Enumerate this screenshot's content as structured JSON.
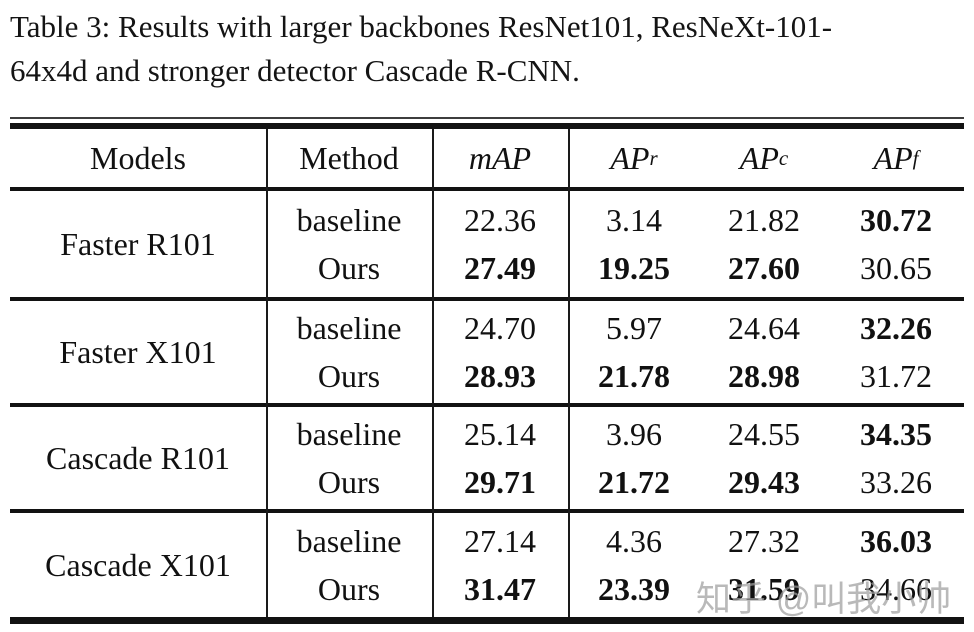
{
  "caption": {
    "line1": "Table 3: Results with larger backbones ResNet101, ResNeXt-101-",
    "line2": "64x4d and stronger detector Cascade R-CNN."
  },
  "table": {
    "headers": {
      "models": "Models",
      "method": "Method",
      "map": "mAP",
      "ap": "AP",
      "sub_r": "r",
      "sub_c": "c",
      "sub_f": "f"
    },
    "method_labels": {
      "baseline": "baseline",
      "ours": "Ours"
    },
    "rows": [
      {
        "model": "Faster R101",
        "baseline": {
          "map": "22.36",
          "apr": "3.14",
          "apc": "21.82",
          "apf": "30.72"
        },
        "ours": {
          "map": "27.49",
          "apr": "19.25",
          "apc": "27.60",
          "apf": "30.65"
        }
      },
      {
        "model": "Faster X101",
        "baseline": {
          "map": "24.70",
          "apr": "5.97",
          "apc": "24.64",
          "apf": "32.26"
        },
        "ours": {
          "map": "28.93",
          "apr": "21.78",
          "apc": "28.98",
          "apf": "31.72"
        }
      },
      {
        "model": "Cascade R101",
        "baseline": {
          "map": "25.14",
          "apr": "3.96",
          "apc": "24.55",
          "apf": "34.35"
        },
        "ours": {
          "map": "29.71",
          "apr": "21.72",
          "apc": "29.43",
          "apf": "33.26"
        }
      },
      {
        "model": "Cascade X101",
        "baseline": {
          "map": "27.14",
          "apr": "4.36",
          "apc": "27.32",
          "apf": "36.03"
        },
        "ours": {
          "map": "31.47",
          "apr": "23.39",
          "apc": "31.59",
          "apf": "34.66"
        }
      }
    ]
  },
  "watermark": {
    "text": "知乎 @叫我小帅",
    "color": "#9e9e9e"
  },
  "colors": {
    "text": "#111111",
    "rule": "#121212",
    "background": "#ffffff"
  }
}
